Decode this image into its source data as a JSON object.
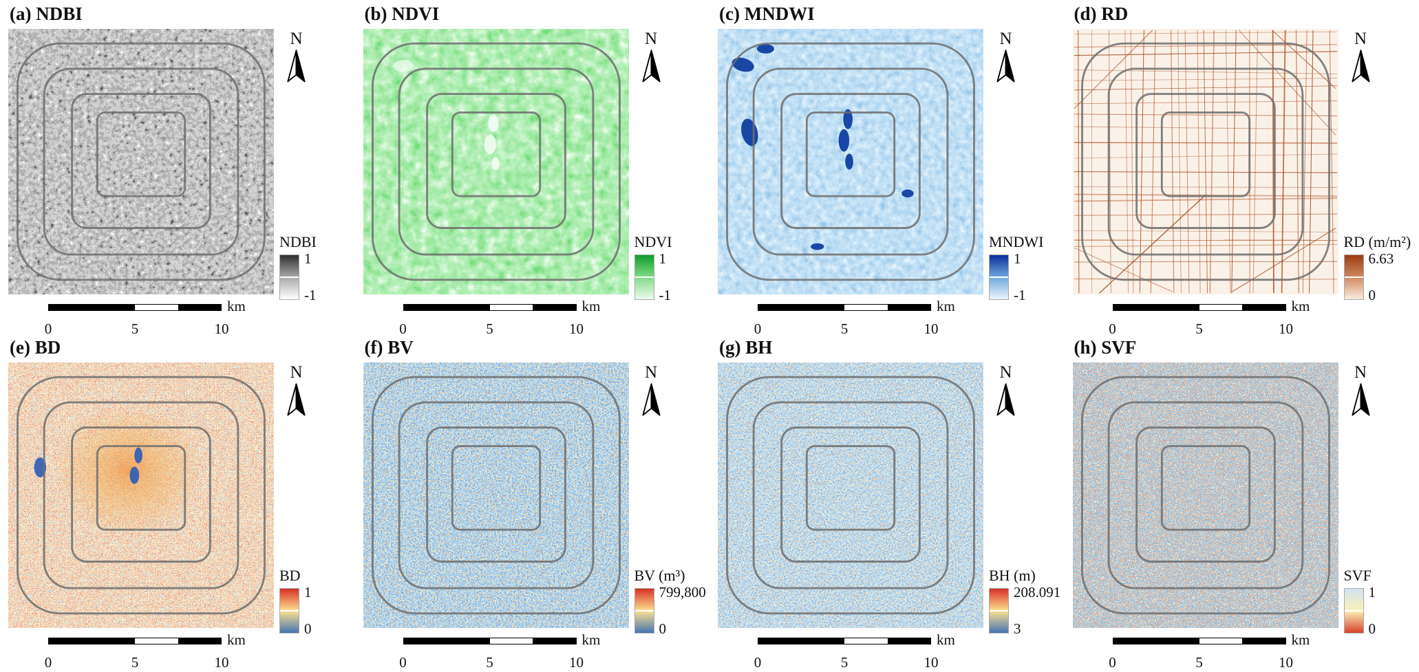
{
  "figure": {
    "north_label": "N",
    "scalebar": {
      "t0": "0",
      "t5": "5",
      "t10": "10",
      "unit": "km"
    },
    "ring_road_color": "#6e6e6e"
  },
  "panels": [
    {
      "id": "a",
      "title": "(a) NDBI",
      "texture": "ndbi",
      "base_color": "#9a9a9a",
      "legend": {
        "label": "NDBI",
        "max": "1",
        "min": "-1",
        "ramp": [
          "#2f2f2f",
          "#a9a9a9",
          "#ffffff"
        ]
      }
    },
    {
      "id": "b",
      "title": "(b) NDVI",
      "texture": "ndvi",
      "base_color": "#5ecf63",
      "legend": {
        "label": "NDVI",
        "max": "1",
        "min": "-1",
        "ramp": [
          "#0f9c2c",
          "#7fdc84",
          "#eefaee"
        ]
      }
    },
    {
      "id": "c",
      "title": "(c) MNDWI",
      "texture": "mndwi",
      "base_color": "#8ec3ea",
      "legend": {
        "label": "MNDWI",
        "max": "1",
        "min": "-1",
        "ramp": [
          "#0a2f9b",
          "#6fa8dc",
          "#eaf4fc"
        ]
      }
    },
    {
      "id": "d",
      "title": "(d) RD",
      "texture": "rd",
      "base_color": "#f8ecdf",
      "legend": {
        "label": "RD (m/m²)",
        "max": "6.63",
        "min": "0",
        "ramp": [
          "#9c3d12",
          "#cf8a5e",
          "#f9ecdf"
        ]
      }
    },
    {
      "id": "e",
      "title": "(e) BD",
      "texture": "bd",
      "base_color": "#e9e3b8",
      "legend": {
        "label": "BD",
        "max": "1",
        "min": "0",
        "ramp": [
          "#d73027",
          "#fee090",
          "#4575b4"
        ]
      }
    },
    {
      "id": "f",
      "title": "(f) BV",
      "texture": "bv",
      "base_color": "#4a7fbe",
      "legend": {
        "label": "BV (m³)",
        "max": "799,800",
        "min": "0",
        "ramp": [
          "#d73027",
          "#fee090",
          "#4575b4"
        ]
      }
    },
    {
      "id": "g",
      "title": "(g) BH",
      "texture": "bh",
      "base_color": "#5588c2",
      "legend": {
        "label": "BH (m)",
        "max": "208.091",
        "min": "3",
        "ramp": [
          "#d73027",
          "#fee090",
          "#4575b4"
        ]
      }
    },
    {
      "id": "h",
      "title": "(h) SVF",
      "texture": "svf",
      "base_color": "#5d8fc4",
      "legend": {
        "label": "SVF",
        "max": "1",
        "min": "0",
        "ramp": [
          "#cfe3f0",
          "#fdf0b8",
          "#d7432a"
        ]
      }
    }
  ]
}
